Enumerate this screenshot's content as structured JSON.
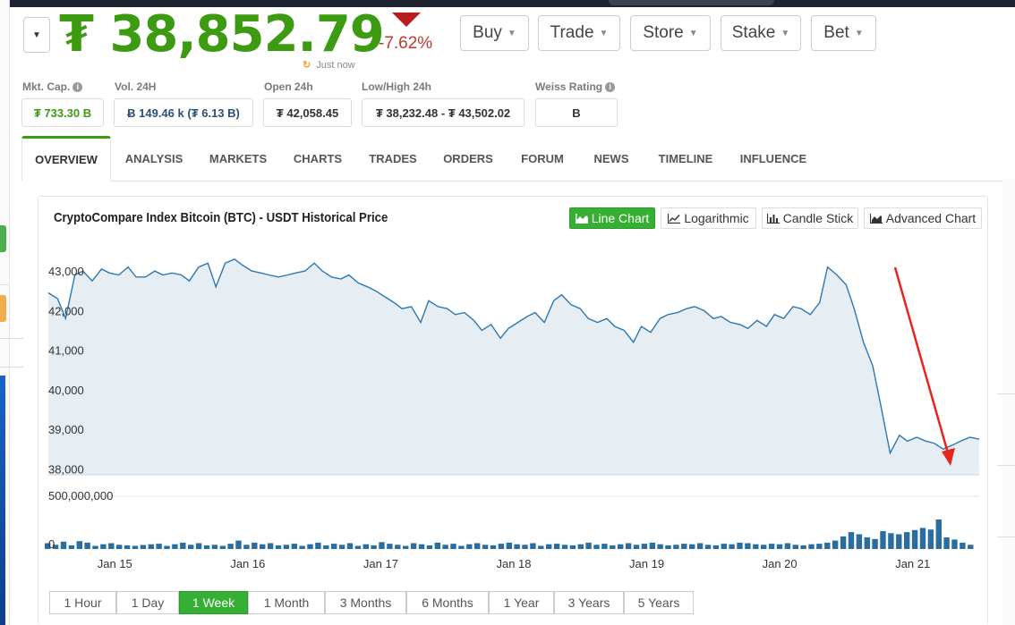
{
  "header": {
    "price": "₮ 38,852.79",
    "change": "-7.62%",
    "updated": "Just now",
    "nav_buttons": [
      "Buy",
      "Trade",
      "Store",
      "Stake",
      "Bet"
    ]
  },
  "stats": [
    {
      "label": "Mkt. Cap.",
      "value": "₮ 733.30 B",
      "has_info": true
    },
    {
      "label": "Vol. 24H",
      "value": "Ƀ 149.46 k (₮ 6.13 B)",
      "has_info": false
    },
    {
      "label": "Open 24h",
      "value": "₮ 42,058.45",
      "has_info": false
    },
    {
      "label": "Low/High 24h",
      "value": "₮ 38,232.48 - ₮ 43,502.02",
      "has_info": false
    },
    {
      "label": "Weiss Rating",
      "value": "B",
      "has_info": true
    }
  ],
  "tabs": [
    "OVERVIEW",
    "ANALYSIS",
    "MARKETS",
    "CHARTS",
    "TRADES",
    "ORDERS",
    "FORUM",
    "NEWS",
    "TIMELINE",
    "INFLUENCE"
  ],
  "active_tab": "OVERVIEW",
  "chart_panel": {
    "title": "CryptoCompare Index Bitcoin (BTC) - USDT Historical Price",
    "chart_types": [
      "Line Chart",
      "Logarithmic",
      "Candle Stick",
      "Advanced Chart"
    ],
    "active_chart_type": "Line Chart",
    "ranges": [
      "1 Hour",
      "1 Day",
      "1 Week",
      "1 Month",
      "3 Months",
      "6 Months",
      "1 Year",
      "3 Years",
      "5 Years"
    ],
    "active_range": "1 Week"
  },
  "colors": {
    "price_green": "#3d9b12",
    "change_red": "#c0392b",
    "active_green": "#35b034",
    "line_blue": "#2a78b5",
    "area_fill": "#e6eef4",
    "bar_blue": "#2a6d9e",
    "arrow_red": "#e8241c"
  },
  "chart_data": {
    "type": "line",
    "price_axis": {
      "ticks": [
        "43,000",
        "42,000",
        "41,000",
        "40,000",
        "39,000",
        "38,000"
      ],
      "tick_values": [
        43000,
        42000,
        41000,
        40000,
        39000,
        38000
      ],
      "ylim": [
        37850,
        43500
      ]
    },
    "volume_axis": {
      "ticks": [
        "500,000,000",
        "0"
      ],
      "tick_values": [
        500000000,
        0
      ]
    },
    "x_ticks": [
      "Jan 15",
      "Jan 16",
      "Jan 17",
      "Jan 18",
      "Jan 19",
      "Jan 20",
      "Jan 21"
    ],
    "x_tick_pos": [
      0.5,
      1.5,
      2.5,
      3.5,
      4.5,
      5.5,
      6.5
    ],
    "x_range": [
      0,
      7
    ],
    "price_series": {
      "x": [
        0,
        0.07,
        0.13,
        0.2,
        0.26,
        0.33,
        0.4,
        0.46,
        0.53,
        0.6,
        0.66,
        0.73,
        0.8,
        0.86,
        0.93,
        1.0,
        1.06,
        1.13,
        1.2,
        1.26,
        1.33,
        1.4,
        1.46,
        1.53,
        1.6,
        1.66,
        1.73,
        1.8,
        1.86,
        1.93,
        2.0,
        2.06,
        2.13,
        2.2,
        2.26,
        2.33,
        2.4,
        2.46,
        2.53,
        2.6,
        2.66,
        2.73,
        2.8,
        2.86,
        2.93,
        3.0,
        3.06,
        3.13,
        3.2,
        3.26,
        3.33,
        3.4,
        3.46,
        3.53,
        3.6,
        3.66,
        3.73,
        3.8,
        3.86,
        3.93,
        4.0,
        4.06,
        4.13,
        4.2,
        4.26,
        4.33,
        4.4,
        4.46,
        4.53,
        4.6,
        4.66,
        4.73,
        4.8,
        4.86,
        4.93,
        5.0,
        5.06,
        5.13,
        5.2,
        5.26,
        5.33,
        5.4,
        5.46,
        5.53,
        5.6,
        5.66,
        5.73,
        5.8,
        5.86,
        5.93,
        6.0,
        6.06,
        6.13,
        6.2,
        6.26,
        6.33,
        6.4,
        6.46,
        6.53,
        6.6,
        6.66,
        6.73,
        6.8,
        6.86,
        6.93,
        7.0
      ],
      "y": [
        42450,
        42300,
        41800,
        42900,
        43000,
        42750,
        43050,
        42950,
        42900,
        43100,
        42850,
        42850,
        43000,
        42900,
        42950,
        42900,
        42750,
        43100,
        43200,
        42600,
        43200,
        43300,
        43150,
        43000,
        42950,
        42900,
        42850,
        42900,
        42950,
        43000,
        43200,
        43000,
        42850,
        42800,
        42900,
        42700,
        42600,
        42500,
        42350,
        42200,
        42050,
        42100,
        41700,
        42250,
        42100,
        42050,
        41900,
        41950,
        41750,
        41500,
        41650,
        41300,
        41550,
        41700,
        41850,
        41950,
        41700,
        42250,
        42400,
        42150,
        42050,
        41800,
        41700,
        41800,
        41600,
        41500,
        41200,
        41600,
        41450,
        41800,
        41900,
        41950,
        42050,
        42100,
        42000,
        41800,
        41850,
        41700,
        41650,
        41550,
        41750,
        41600,
        41900,
        41800,
        42100,
        42050,
        41900,
        42200,
        43100,
        42900,
        42650,
        42050,
        41200,
        40600,
        39600,
        38400,
        38850,
        38700,
        38800,
        38700,
        38650,
        38500,
        38600,
        38700,
        38800,
        38750
      ]
    },
    "volume_series": {
      "values_millions": [
        55,
        40,
        70,
        35,
        75,
        60,
        30,
        45,
        55,
        40,
        35,
        30,
        38,
        45,
        50,
        30,
        45,
        60,
        40,
        55,
        35,
        40,
        30,
        50,
        80,
        40,
        60,
        45,
        55,
        35,
        40,
        50,
        30,
        45,
        60,
        35,
        50,
        40,
        55,
        30,
        45,
        35,
        65,
        50,
        40,
        30,
        55,
        45,
        35,
        60,
        40,
        50,
        30,
        45,
        55,
        40,
        35,
        50,
        60,
        45,
        40,
        55,
        30,
        45,
        50,
        40,
        35,
        45,
        60,
        40,
        50,
        35,
        45,
        55,
        40,
        50,
        60,
        45,
        35,
        40,
        50,
        45,
        55,
        40,
        35,
        50,
        45,
        60,
        55,
        45,
        40,
        50,
        45,
        55,
        40,
        35,
        45,
        50,
        60,
        80,
        120,
        160,
        140,
        110,
        95,
        170,
        150,
        140,
        160,
        180,
        200,
        185,
        280,
        110,
        90,
        60,
        40
      ]
    }
  }
}
